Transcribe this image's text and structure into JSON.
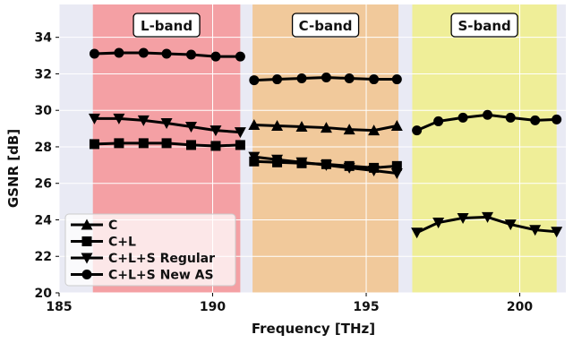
{
  "chart_data": {
    "type": "line",
    "xlabel": "Frequency [THz]",
    "ylabel": "GSNR [dB]",
    "xlim": [
      185,
      201.5
    ],
    "ylim": [
      20,
      35.8
    ],
    "xticks": [
      185,
      190,
      195,
      200
    ],
    "yticks": [
      20,
      22,
      24,
      26,
      28,
      30,
      32,
      34
    ],
    "grid": true,
    "legend_position": "bottom-left",
    "bands": [
      {
        "label": "L-band",
        "from": 186.1,
        "to": 190.9,
        "color": "#f4a0a4"
      },
      {
        "label": "C-band",
        "from": 191.3,
        "to": 196.05,
        "color": "#f1c99b"
      },
      {
        "label": "S-band",
        "from": 196.5,
        "to": 201.2,
        "color": "#efee98"
      }
    ],
    "series": [
      {
        "name": "C",
        "marker": "triangle-up",
        "segments": [
          {
            "x": [
              191.35,
              192.1,
              192.9,
              193.7,
              194.45,
              195.25,
              196.0
            ],
            "y": [
              29.2,
              29.15,
              29.1,
              29.05,
              28.95,
              28.9,
              29.15
            ]
          }
        ]
      },
      {
        "name": "C+L",
        "marker": "square",
        "segments": [
          {
            "x": [
              186.15,
              186.95,
              187.75,
              188.5,
              189.3,
              190.1,
              190.9
            ],
            "y": [
              28.15,
              28.2,
              28.2,
              28.2,
              28.1,
              28.05,
              28.1
            ]
          },
          {
            "x": [
              191.35,
              192.1,
              192.9,
              193.7,
              194.45,
              195.25,
              196.0
            ],
            "y": [
              27.2,
              27.15,
              27.1,
              27.05,
              26.95,
              26.85,
              26.95
            ]
          }
        ]
      },
      {
        "name": "C+L+S Regular",
        "marker": "triangle-down",
        "segments": [
          {
            "x": [
              186.15,
              186.95,
              187.75,
              188.5,
              189.3,
              190.1,
              190.9
            ],
            "y": [
              29.55,
              29.55,
              29.45,
              29.3,
              29.1,
              28.9,
              28.8
            ]
          },
          {
            "x": [
              191.35,
              192.1,
              192.9,
              193.7,
              194.45,
              195.25,
              196.0
            ],
            "y": [
              27.45,
              27.3,
              27.15,
              27.0,
              26.85,
              26.7,
              26.55
            ]
          },
          {
            "x": [
              196.65,
              197.35,
              198.15,
              198.95,
              199.7,
              200.5,
              201.2
            ],
            "y": [
              23.3,
              23.85,
              24.1,
              24.15,
              23.75,
              23.45,
              23.35
            ]
          }
        ]
      },
      {
        "name": "C+L+S New AS",
        "marker": "circle",
        "segments": [
          {
            "x": [
              186.15,
              186.95,
              187.75,
              188.5,
              189.3,
              190.1,
              190.9
            ],
            "y": [
              33.1,
              33.15,
              33.15,
              33.1,
              33.05,
              32.95,
              32.95
            ]
          },
          {
            "x": [
              191.35,
              192.1,
              192.9,
              193.7,
              194.45,
              195.25,
              196.0
            ],
            "y": [
              31.65,
              31.7,
              31.75,
              31.8,
              31.75,
              31.7,
              31.7
            ]
          },
          {
            "x": [
              196.65,
              197.35,
              198.15,
              198.95,
              199.7,
              200.5,
              201.2
            ],
            "y": [
              28.9,
              29.4,
              29.6,
              29.75,
              29.6,
              29.45,
              29.5
            ]
          }
        ]
      }
    ]
  },
  "colors": {
    "plot_background": "#e9eaf4",
    "grid": "#ffffff",
    "line": "#000000"
  }
}
